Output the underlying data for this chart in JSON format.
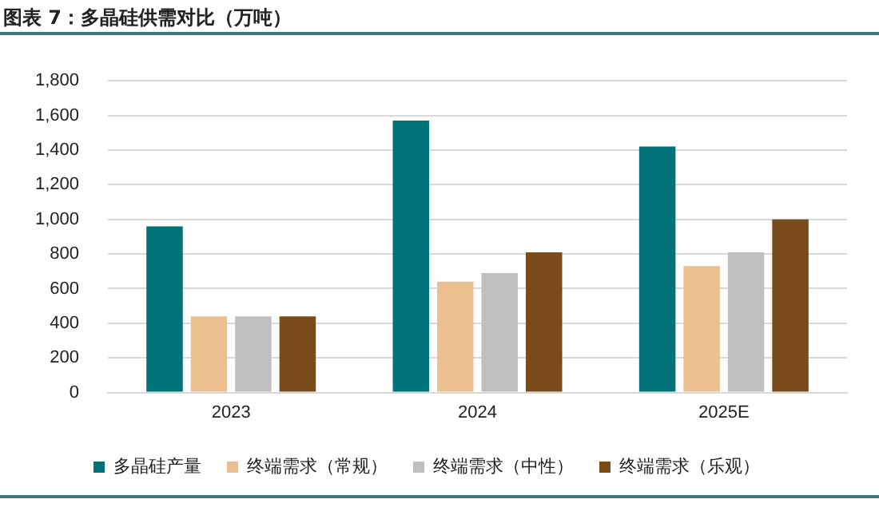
{
  "chart_data": {
    "type": "bar",
    "title": "图表 7：多晶硅供需对比（万吨）",
    "categories": [
      "2023",
      "2024",
      "2025E"
    ],
    "series": [
      {
        "name": "多晶硅产量",
        "color": "#00727a",
        "values": [
          960,
          1570,
          1420
        ]
      },
      {
        "name": "终端需求（常规）",
        "color": "#ebc08e",
        "values": [
          440,
          640,
          730
        ]
      },
      {
        "name": "终端需求（中性）",
        "color": "#bfbfbf",
        "values": [
          440,
          690,
          810
        ]
      },
      {
        "name": "终端需求（乐观）",
        "color": "#7a4c1a",
        "values": [
          440,
          810,
          1000
        ]
      }
    ],
    "ylim": [
      0,
      1800
    ],
    "yticks": [
      0,
      200,
      400,
      600,
      800,
      {
        "value": 1000,
        "label": "1,000"
      },
      {
        "value": 1200,
        "label": "1,200"
      },
      {
        "value": 1400,
        "label": "1,400"
      },
      {
        "value": 1600,
        "label": "1,600"
      },
      {
        "value": 1800,
        "label": "1,800"
      }
    ],
    "grid": "y",
    "legend": "bottom"
  }
}
